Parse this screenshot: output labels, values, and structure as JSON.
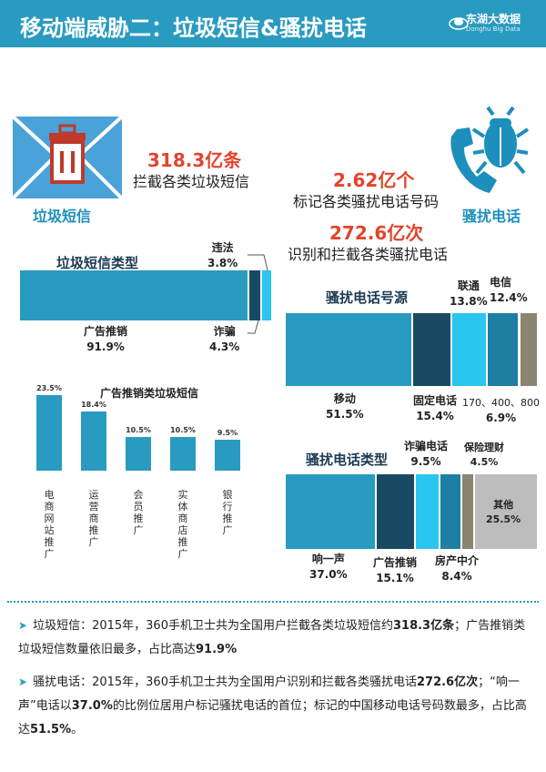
{
  "header": {
    "title": "移动端威胁二：垃圾短信&骚扰电话",
    "logo_name": "东湖大数据",
    "logo_sub": "Donghu Big Data"
  },
  "colors": {
    "teal": "#2a9bc0",
    "navy": "#1a4a63",
    "dark_teal": "#1b6f93",
    "cyan": "#29c6ef",
    "mid_teal": "#1f7ea3",
    "khaki": "#8a8470",
    "gray": "#bdbdbd",
    "red": "#e0452b"
  },
  "icons": {
    "spam": "trash-envelope-icon",
    "phone": "phone-bug-icon"
  },
  "spam_icon_label": "垃圾短信",
  "phone_icon_label": "骚扰电话",
  "stats": {
    "spam_value": "318.3亿条",
    "spam_desc": "拦截各类垃圾短信",
    "marked_value": "2.62亿个",
    "marked_desc": "标记各类骚扰电话号码",
    "identified_value": "272.6亿次",
    "identified_desc": "识别和拦截各类骚扰电话"
  },
  "chart_data": [
    {
      "type": "bar",
      "orientation": "horizontal-stacked",
      "title": "垃圾短信类型",
      "series": [
        {
          "name": "广告推销",
          "pct": "91.9%",
          "value": 91.9,
          "color": "#2a9bc0"
        },
        {
          "name": "诈骗",
          "pct": "4.3%",
          "value": 4.3,
          "color": "#1a4a63"
        },
        {
          "name": "违法",
          "pct": "3.8%",
          "value": 3.8,
          "color": "#29c6ef"
        }
      ]
    },
    {
      "type": "bar",
      "title": "广告推销类垃圾短信",
      "categories": [
        "电商网站推广",
        "运营商推广",
        "会员推广",
        "实体商店推广",
        "银行推广"
      ],
      "values": [
        23.5,
        18.4,
        10.5,
        10.5,
        9.5
      ],
      "labels": [
        "23.5%",
        "18.4%",
        "10.5%",
        "10.5%",
        "9.5%"
      ],
      "color": "#2a9bc0"
    },
    {
      "type": "bar",
      "orientation": "horizontal-stacked",
      "title": "骚扰电话号源",
      "series": [
        {
          "name": "移动",
          "pct": "51.5%",
          "value": 51.5,
          "color": "#2a9bc0"
        },
        {
          "name": "固定电话",
          "pct": "15.4%",
          "value": 15.4,
          "color": "#1a4a63"
        },
        {
          "name": "联通",
          "pct": "13.8%",
          "value": 13.8,
          "color": "#29c6ef"
        },
        {
          "name": "电信",
          "pct": "12.4%",
          "value": 12.4,
          "color": "#1f7ea3"
        },
        {
          "name": "170、400、800",
          "pct": "6.9%",
          "value": 6.9,
          "color": "#8a8470"
        }
      ]
    },
    {
      "type": "bar",
      "orientation": "horizontal-stacked",
      "title": "骚扰电话类型",
      "series": [
        {
          "name": "响一声",
          "pct": "37.0%",
          "value": 37.0,
          "color": "#2a9bc0"
        },
        {
          "name": "广告推销",
          "pct": "15.1%",
          "value": 15.1,
          "color": "#1a4a63"
        },
        {
          "name": "诈骗电话",
          "pct": "9.5%",
          "value": 9.5,
          "color": "#29c6ef"
        },
        {
          "name": "房产中介",
          "pct": "8.4%",
          "value": 8.4,
          "color": "#1f7ea3"
        },
        {
          "name": "保险理财",
          "pct": "4.5%",
          "value": 4.5,
          "color": "#8a8470"
        },
        {
          "name": "其他",
          "pct": "25.5%",
          "value": 25.5,
          "color": "#bdbdbd"
        }
      ]
    }
  ],
  "notes": [
    {
      "label": "垃圾短信",
      "t1": "：2015年，360手机卫士共为全国用户拦截各类垃圾短信约",
      "b1": "318.3亿条",
      "t2": "；广告推销类垃圾短信数量依旧最多，占比高达",
      "b2": "91.9%",
      "t3": ""
    },
    {
      "label": "骚扰电话",
      "t1": "：2015年，360手机卫士共为全国用户识别和拦截各类骚扰电话",
      "b1": "272.6亿次",
      "t2": "；“响一声”电话以",
      "b2": "37.0%",
      "t3": "的比例位居用户标记骚扰电话的首位；标记的中国移动电话号码数最多，占比高达",
      "b3": "51.5%",
      "t4": "。"
    }
  ]
}
